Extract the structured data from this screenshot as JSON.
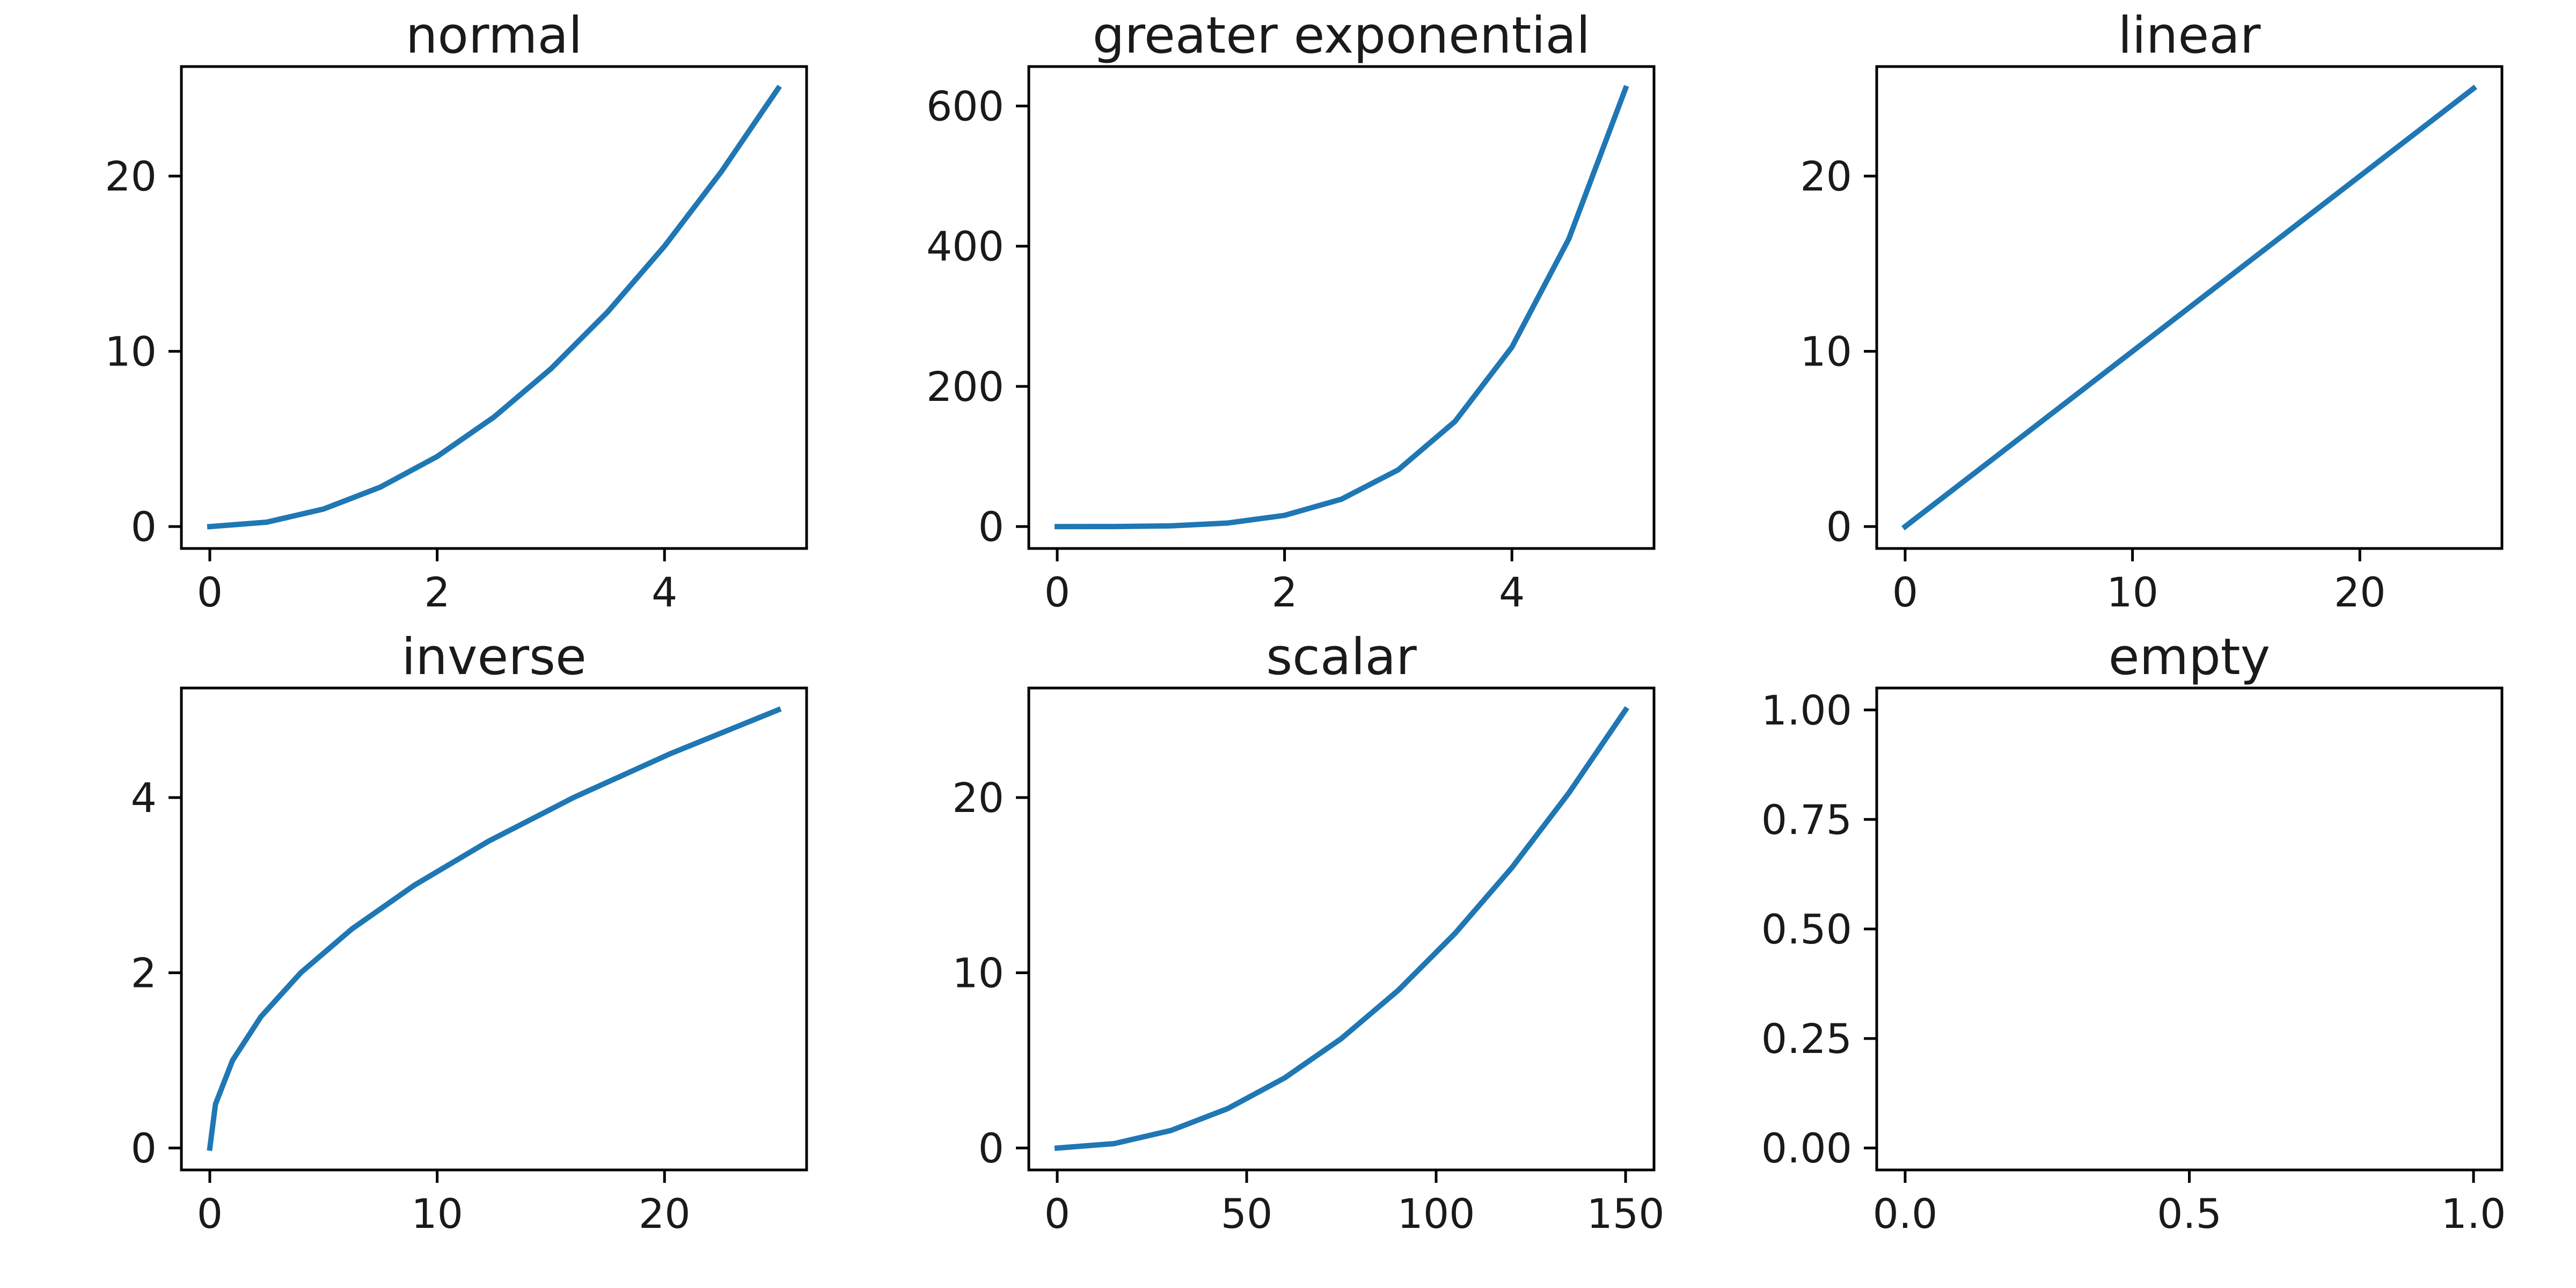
{
  "chart_data": [
    {
      "type": "line",
      "title": "normal",
      "x": [
        0,
        0.5,
        1,
        1.5,
        2,
        2.5,
        3,
        3.5,
        4,
        4.5,
        5
      ],
      "series": [
        {
          "values": [
            0,
            0.25,
            1,
            2.25,
            4,
            6.25,
            9,
            12.25,
            16,
            20.25,
            25
          ]
        }
      ],
      "xlim": [
        -0.25,
        5.25
      ],
      "ylim": [
        -1.25,
        26.25
      ],
      "xticks": [
        0,
        2,
        4
      ],
      "xtick_labels": [
        "0",
        "2",
        "4"
      ],
      "yticks": [
        0,
        10,
        20
      ],
      "ytick_labels": [
        "0",
        "10",
        "20"
      ],
      "color": "#1f77b4"
    },
    {
      "type": "line",
      "title": "greater exponential",
      "x": [
        0,
        0.5,
        1,
        1.5,
        2,
        2.5,
        3,
        3.5,
        4,
        4.5,
        5
      ],
      "series": [
        {
          "values": [
            0,
            0.0625,
            1,
            5.0625,
            16,
            39.0625,
            81,
            150.0625,
            256,
            410.0625,
            625
          ]
        }
      ],
      "xlim": [
        -0.25,
        5.25
      ],
      "ylim": [
        -31.25,
        656.25
      ],
      "xticks": [
        0,
        2,
        4
      ],
      "xtick_labels": [
        "0",
        "2",
        "4"
      ],
      "yticks": [
        0,
        200,
        400,
        600
      ],
      "ytick_labels": [
        "0",
        "200",
        "400",
        "600"
      ],
      "color": "#1f77b4"
    },
    {
      "type": "line",
      "title": "linear",
      "x": [
        0,
        0.25,
        1,
        2.25,
        4,
        6.25,
        9,
        12.25,
        16,
        20.25,
        25
      ],
      "series": [
        {
          "values": [
            0,
            0.25,
            1,
            2.25,
            4,
            6.25,
            9,
            12.25,
            16,
            20.25,
            25
          ]
        }
      ],
      "xlim": [
        -1.25,
        26.25
      ],
      "ylim": [
        -1.25,
        26.25
      ],
      "xticks": [
        0,
        10,
        20
      ],
      "xtick_labels": [
        "0",
        "10",
        "20"
      ],
      "yticks": [
        0,
        10,
        20
      ],
      "ytick_labels": [
        "0",
        "10",
        "20"
      ],
      "color": "#1f77b4"
    },
    {
      "type": "line",
      "title": "inverse",
      "x": [
        0,
        0.25,
        1,
        2.25,
        4,
        6.25,
        9,
        12.25,
        16,
        20.25,
        25
      ],
      "series": [
        {
          "values": [
            0,
            0.5,
            1,
            1.5,
            2,
            2.5,
            3,
            3.5,
            4,
            4.5,
            5
          ]
        }
      ],
      "xlim": [
        -1.25,
        26.25
      ],
      "ylim": [
        -0.25,
        5.25
      ],
      "xticks": [
        0,
        10,
        20
      ],
      "xtick_labels": [
        "0",
        "10",
        "20"
      ],
      "yticks": [
        0,
        2,
        4
      ],
      "ytick_labels": [
        "0",
        "2",
        "4"
      ],
      "color": "#1f77b4"
    },
    {
      "type": "line",
      "title": "scalar",
      "x": [
        0,
        15,
        30,
        45,
        60,
        75,
        90,
        105,
        120,
        135,
        150
      ],
      "series": [
        {
          "values": [
            0,
            0.25,
            1,
            2.25,
            4,
            6.25,
            9,
            12.25,
            16,
            20.25,
            25
          ]
        }
      ],
      "xlim": [
        -7.5,
        157.5
      ],
      "ylim": [
        -1.25,
        26.25
      ],
      "xticks": [
        0,
        50,
        100,
        150
      ],
      "xtick_labels": [
        "0",
        "50",
        "100",
        "150"
      ],
      "yticks": [
        0,
        10,
        20
      ],
      "ytick_labels": [
        "0",
        "10",
        "20"
      ],
      "color": "#1f77b4"
    },
    {
      "type": "line",
      "title": "empty",
      "x": [],
      "series": [],
      "xlim": [
        -0.05,
        1.05
      ],
      "ylim": [
        -0.05,
        1.05
      ],
      "xticks": [
        0,
        0.5,
        1
      ],
      "xtick_labels": [
        "0.0",
        "0.5",
        "1.0"
      ],
      "yticks": [
        0,
        0.25,
        0.5,
        0.75,
        1
      ],
      "ytick_labels": [
        "0.00",
        "0.25",
        "0.50",
        "0.75",
        "1.00"
      ],
      "color": "#1f77b4"
    }
  ]
}
